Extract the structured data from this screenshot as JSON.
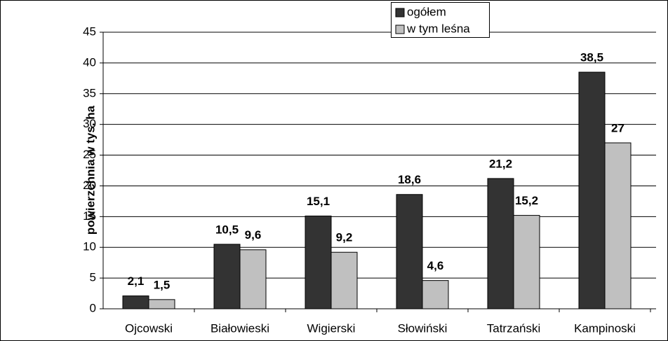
{
  "chart_data": {
    "type": "bar",
    "y_label": "powierzchnia w tys. ha",
    "categories": [
      "Ojcowski",
      "Białowieski",
      "Wigierski",
      "Słowiński",
      "Tatrzański",
      "Kampinoski"
    ],
    "series": [
      {
        "name": "ogółem",
        "color": "#333333",
        "values": [
          2.1,
          10.5,
          15.1,
          18.6,
          21.2,
          38.5
        ],
        "value_labels": [
          "2,1",
          "10,5",
          "15,1",
          "18,6",
          "21,2",
          "38,5"
        ]
      },
      {
        "name": "w tym leśna",
        "color": "#c0c0c0",
        "values": [
          1.5,
          9.6,
          9.2,
          4.6,
          15.2,
          27
        ],
        "value_labels": [
          "1,5",
          "9,6",
          "9,2",
          "4,6",
          "15,2",
          "27"
        ]
      }
    ],
    "ylim": [
      0,
      45
    ],
    "yticks": [
      0,
      5,
      10,
      15,
      20,
      25,
      30,
      35,
      40,
      45
    ],
    "grid": true,
    "legend": "top"
  }
}
